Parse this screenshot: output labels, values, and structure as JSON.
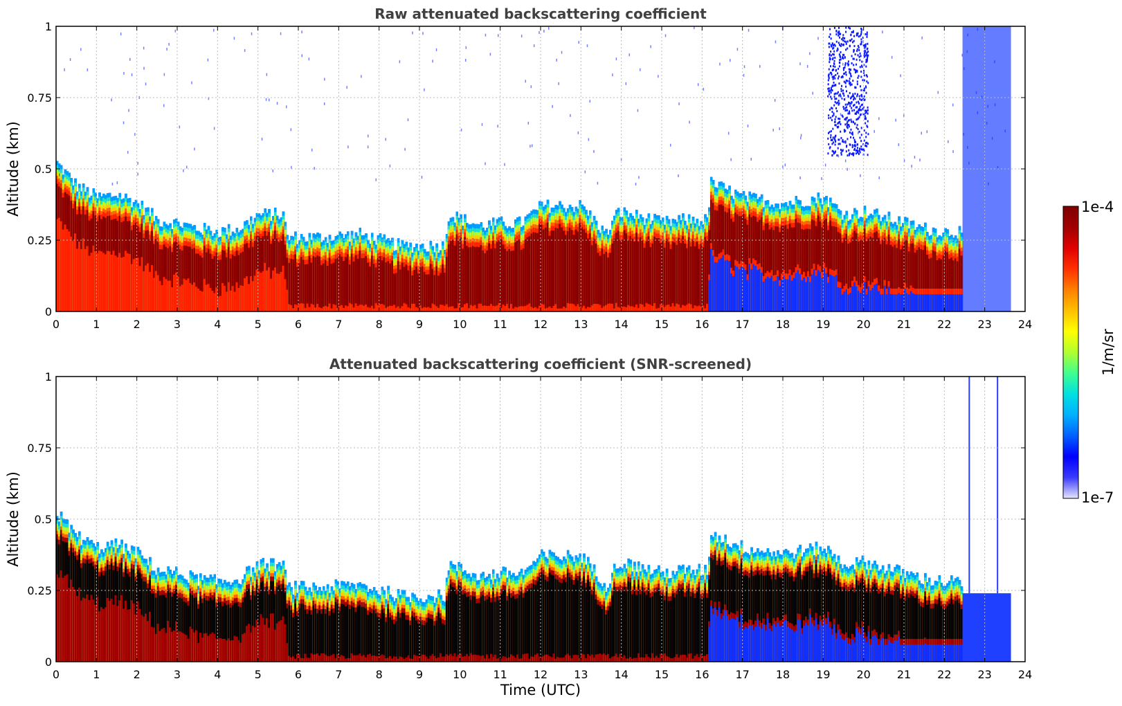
{
  "figure": {
    "colorbar": {
      "label": "1/m/sr",
      "max_label": "1e-4",
      "min_label": "1e-7",
      "scale": "log",
      "range": [
        1e-07,
        0.0001
      ],
      "colors": [
        "#e6e6ff",
        "#3a3aff",
        "#0000ff",
        "#0060ff",
        "#00b0ff",
        "#00e0e0",
        "#40ff90",
        "#b0ff30",
        "#ffff00",
        "#ffc000",
        "#ff8000",
        "#ff3000",
        "#e00000",
        "#a00000",
        "#800000"
      ]
    },
    "xlabel": "Time (UTC)"
  },
  "chart_data": [
    {
      "type": "heatmap",
      "title": "Raw attenuated backscattering coefficient",
      "xlabel": "Time (UTC)",
      "ylabel": "Altitude (km)",
      "xlim": [
        0,
        24
      ],
      "ylim": [
        0,
        1
      ],
      "xticks": [
        "0",
        "1",
        "2",
        "3",
        "4",
        "5",
        "6",
        "7",
        "8",
        "9",
        "10",
        "11",
        "12",
        "13",
        "14",
        "15",
        "16",
        "17",
        "18",
        "19",
        "20",
        "21",
        "22",
        "23",
        "24"
      ],
      "yticks": [
        "0",
        "0.25",
        "0.5",
        "0.75",
        "1"
      ],
      "grid": true,
      "data_end_hour": 23.65,
      "layer_top_km": [
        {
          "t": 0.0,
          "top": 0.52
        },
        {
          "t": 0.5,
          "top": 0.44
        },
        {
          "t": 1.0,
          "top": 0.4
        },
        {
          "t": 1.5,
          "top": 0.41
        },
        {
          "t": 2.0,
          "top": 0.38
        },
        {
          "t": 2.5,
          "top": 0.32
        },
        {
          "t": 3.0,
          "top": 0.31
        },
        {
          "t": 3.5,
          "top": 0.29
        },
        {
          "t": 4.0,
          "top": 0.28
        },
        {
          "t": 4.5,
          "top": 0.29
        },
        {
          "t": 5.0,
          "top": 0.34
        },
        {
          "t": 5.6,
          "top": 0.34
        },
        {
          "t": 5.7,
          "top": 0.26
        },
        {
          "t": 6.5,
          "top": 0.26
        },
        {
          "t": 7.5,
          "top": 0.27
        },
        {
          "t": 8.5,
          "top": 0.23
        },
        {
          "t": 9.6,
          "top": 0.23
        },
        {
          "t": 9.7,
          "top": 0.34
        },
        {
          "t": 10.5,
          "top": 0.3
        },
        {
          "t": 11.0,
          "top": 0.31
        },
        {
          "t": 11.5,
          "top": 0.31
        },
        {
          "t": 12.0,
          "top": 0.37
        },
        {
          "t": 13.0,
          "top": 0.37
        },
        {
          "t": 13.6,
          "top": 0.27
        },
        {
          "t": 13.9,
          "top": 0.35
        },
        {
          "t": 14.5,
          "top": 0.33
        },
        {
          "t": 15.0,
          "top": 0.31
        },
        {
          "t": 15.5,
          "top": 0.32
        },
        {
          "t": 16.1,
          "top": 0.32
        },
        {
          "t": 16.2,
          "top": 0.45
        },
        {
          "t": 17.0,
          "top": 0.4
        },
        {
          "t": 18.0,
          "top": 0.38
        },
        {
          "t": 19.0,
          "top": 0.4
        },
        {
          "t": 19.5,
          "top": 0.34
        },
        {
          "t": 20.0,
          "top": 0.35
        },
        {
          "t": 20.5,
          "top": 0.33
        },
        {
          "t": 21.0,
          "top": 0.31
        },
        {
          "t": 21.5,
          "top": 0.29
        },
        {
          "t": 22.0,
          "top": 0.28
        },
        {
          "t": 22.4,
          "top": 0.28
        }
      ]
    },
    {
      "type": "heatmap",
      "title": "Attenuated backscattering coefficient (SNR-screened)",
      "xlabel": "Time (UTC)",
      "ylabel": "Altitude (km)",
      "xlim": [
        0,
        24
      ],
      "ylim": [
        0,
        1
      ],
      "xticks": [
        "0",
        "1",
        "2",
        "3",
        "4",
        "5",
        "6",
        "7",
        "8",
        "9",
        "10",
        "11",
        "12",
        "13",
        "14",
        "15",
        "16",
        "17",
        "18",
        "19",
        "20",
        "21",
        "22",
        "23",
        "24"
      ],
      "yticks": [
        "0",
        "0.25",
        "0.5",
        "0.75",
        "1"
      ],
      "grid": true,
      "data_end_hour": 23.65,
      "screened_block_top_km": 0.24
    }
  ]
}
